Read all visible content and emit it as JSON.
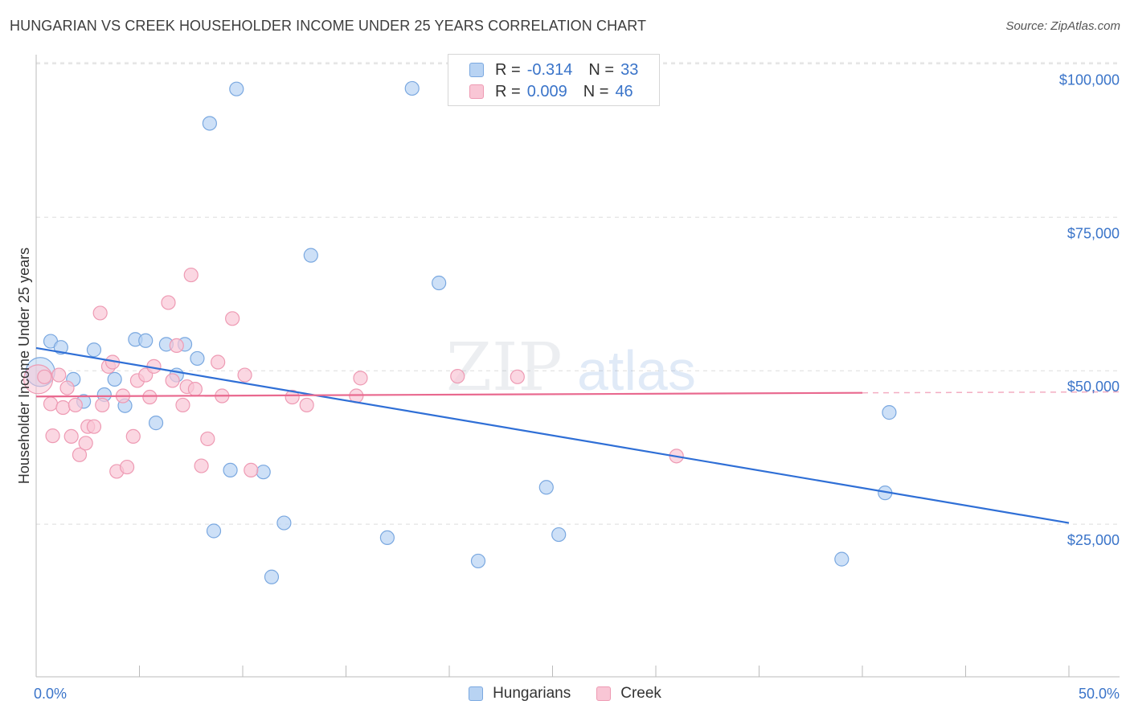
{
  "title": "HUNGARIAN VS CREEK HOUSEHOLDER INCOME UNDER 25 YEARS CORRELATION CHART",
  "source": "Source: ZipAtlas.com",
  "watermark": {
    "zip": "ZIP",
    "atlas": "atlas"
  },
  "legend": {
    "r_label": "R =",
    "n_label": "N =",
    "rows": [
      {
        "series": "Hungarians",
        "r": "-0.314",
        "n": "33"
      },
      {
        "series": "Creek",
        "r": "0.009",
        "n": "46"
      }
    ]
  },
  "colors": {
    "hungarians_fill": "#b8d3f3",
    "hungarians_stroke": "#7aa8e0",
    "hungarians_line": "#2f6fd6",
    "creek_fill": "#f9c6d5",
    "creek_stroke": "#ee9ab3",
    "creek_line": "#e9698f",
    "tick_text": "#3a74c9",
    "grid": "#dddddd"
  },
  "chart_data": {
    "type": "scatter",
    "title": "HUNGARIAN VS CREEK HOUSEHOLDER INCOME UNDER 25 YEARS CORRELATION CHART",
    "xlabel": "",
    "ylabel": "Householder Income Under 25 years",
    "xlim": [
      0,
      50
    ],
    "ylim": [
      0,
      105000
    ],
    "x_tick_labels": [
      "0.0%",
      "50.0%"
    ],
    "y_ticks": [
      {
        "value": 100000,
        "label": "$100,000"
      },
      {
        "value": 75000,
        "label": "$75,000"
      },
      {
        "value": 50000,
        "label": "$50,000"
      },
      {
        "value": 25000,
        "label": "$25,000"
      }
    ],
    "grid": "horizontal dashed",
    "legend_position": "top-center and bottom",
    "series": [
      {
        "name": "Hungarians",
        "r": -0.314,
        "n": 33,
        "trend": {
          "x": [
            0,
            50
          ],
          "y": [
            53700,
            25200
          ]
        },
        "points": [
          {
            "x": 0.2,
            "y": 49800,
            "big": true
          },
          {
            "x": 0.7,
            "y": 54800
          },
          {
            "x": 1.2,
            "y": 53800
          },
          {
            "x": 1.8,
            "y": 48600
          },
          {
            "x": 2.3,
            "y": 45000
          },
          {
            "x": 2.8,
            "y": 53400
          },
          {
            "x": 3.3,
            "y": 46100
          },
          {
            "x": 3.8,
            "y": 48600
          },
          {
            "x": 4.3,
            "y": 44300
          },
          {
            "x": 4.8,
            "y": 55100
          },
          {
            "x": 5.3,
            "y": 54900
          },
          {
            "x": 5.8,
            "y": 41500
          },
          {
            "x": 6.3,
            "y": 54300
          },
          {
            "x": 6.8,
            "y": 49300
          },
          {
            "x": 7.2,
            "y": 54300
          },
          {
            "x": 7.8,
            "y": 52000
          },
          {
            "x": 8.4,
            "y": 90300
          },
          {
            "x": 8.6,
            "y": 23900
          },
          {
            "x": 9.4,
            "y": 33800
          },
          {
            "x": 9.7,
            "y": 95900
          },
          {
            "x": 11.0,
            "y": 33500
          },
          {
            "x": 11.4,
            "y": 16400
          },
          {
            "x": 12.0,
            "y": 25200
          },
          {
            "x": 13.3,
            "y": 68800
          },
          {
            "x": 17.0,
            "y": 22800
          },
          {
            "x": 18.2,
            "y": 96000
          },
          {
            "x": 19.5,
            "y": 64300
          },
          {
            "x": 21.4,
            "y": 19000
          },
          {
            "x": 24.7,
            "y": 31000
          },
          {
            "x": 25.3,
            "y": 23300
          },
          {
            "x": 39.0,
            "y": 19300
          },
          {
            "x": 41.1,
            "y": 30100
          },
          {
            "x": 41.3,
            "y": 43200
          }
        ]
      },
      {
        "name": "Creek",
        "r": 0.009,
        "n": 46,
        "trend": {
          "x": [
            0,
            40
          ],
          "y": [
            45800,
            46400
          ]
        },
        "trend_dashed": {
          "x": [
            40,
            50
          ],
          "y": [
            46400,
            46550
          ]
        },
        "points": [
          {
            "x": 0.1,
            "y": 48600,
            "big": true
          },
          {
            "x": 0.4,
            "y": 49000
          },
          {
            "x": 0.7,
            "y": 44600
          },
          {
            "x": 0.8,
            "y": 39400
          },
          {
            "x": 1.1,
            "y": 49300
          },
          {
            "x": 1.3,
            "y": 44000
          },
          {
            "x": 1.5,
            "y": 47200
          },
          {
            "x": 1.7,
            "y": 39300
          },
          {
            "x": 1.9,
            "y": 44400
          },
          {
            "x": 2.1,
            "y": 36300
          },
          {
            "x": 2.4,
            "y": 38200
          },
          {
            "x": 2.5,
            "y": 40900
          },
          {
            "x": 2.8,
            "y": 40900
          },
          {
            "x": 3.1,
            "y": 59400
          },
          {
            "x": 3.2,
            "y": 44400
          },
          {
            "x": 3.5,
            "y": 50700
          },
          {
            "x": 3.7,
            "y": 51400
          },
          {
            "x": 3.9,
            "y": 33600
          },
          {
            "x": 4.2,
            "y": 45900
          },
          {
            "x": 4.4,
            "y": 34300
          },
          {
            "x": 4.7,
            "y": 39300
          },
          {
            "x": 4.9,
            "y": 48400
          },
          {
            "x": 5.3,
            "y": 49300
          },
          {
            "x": 5.5,
            "y": 45700
          },
          {
            "x": 5.7,
            "y": 50700
          },
          {
            "x": 6.4,
            "y": 61100
          },
          {
            "x": 6.6,
            "y": 48400
          },
          {
            "x": 6.8,
            "y": 54100
          },
          {
            "x": 7.1,
            "y": 44400
          },
          {
            "x": 7.3,
            "y": 47400
          },
          {
            "x": 7.5,
            "y": 65600
          },
          {
            "x": 7.7,
            "y": 47000
          },
          {
            "x": 8.0,
            "y": 34500
          },
          {
            "x": 8.3,
            "y": 38900
          },
          {
            "x": 8.8,
            "y": 51400
          },
          {
            "x": 9.0,
            "y": 45900
          },
          {
            "x": 9.5,
            "y": 58500
          },
          {
            "x": 10.1,
            "y": 49300
          },
          {
            "x": 10.4,
            "y": 33800
          },
          {
            "x": 12.4,
            "y": 45700
          },
          {
            "x": 13.1,
            "y": 44400
          },
          {
            "x": 15.5,
            "y": 45900
          },
          {
            "x": 15.7,
            "y": 48800
          },
          {
            "x": 20.4,
            "y": 49100
          },
          {
            "x": 23.3,
            "y": 49000
          },
          {
            "x": 31.0,
            "y": 36100
          }
        ]
      }
    ]
  }
}
